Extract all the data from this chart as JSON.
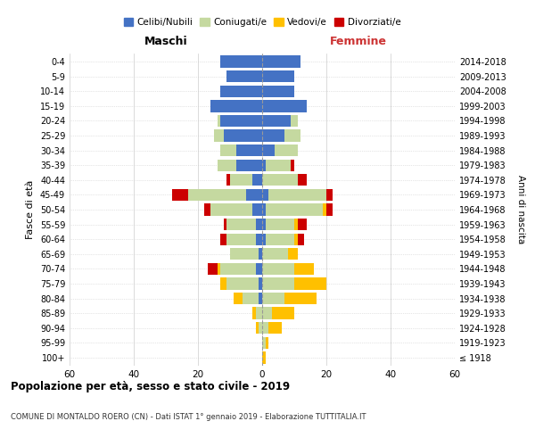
{
  "age_groups": [
    "100+",
    "95-99",
    "90-94",
    "85-89",
    "80-84",
    "75-79",
    "70-74",
    "65-69",
    "60-64",
    "55-59",
    "50-54",
    "45-49",
    "40-44",
    "35-39",
    "30-34",
    "25-29",
    "20-24",
    "15-19",
    "10-14",
    "5-9",
    "0-4"
  ],
  "birth_years": [
    "≤ 1918",
    "1919-1923",
    "1924-1928",
    "1929-1933",
    "1934-1938",
    "1939-1943",
    "1944-1948",
    "1949-1953",
    "1954-1958",
    "1959-1963",
    "1964-1968",
    "1969-1973",
    "1974-1978",
    "1979-1983",
    "1984-1988",
    "1989-1993",
    "1994-1998",
    "1999-2003",
    "2004-2008",
    "2009-2013",
    "2014-2018"
  ],
  "maschi": {
    "celibi": [
      0,
      0,
      0,
      0,
      1,
      1,
      2,
      1,
      2,
      2,
      3,
      5,
      3,
      8,
      8,
      12,
      13,
      16,
      13,
      11,
      13
    ],
    "coniugati": [
      0,
      0,
      1,
      2,
      5,
      10,
      11,
      9,
      9,
      9,
      13,
      18,
      7,
      6,
      5,
      3,
      1,
      0,
      0,
      0,
      0
    ],
    "vedovi": [
      0,
      0,
      1,
      1,
      3,
      2,
      1,
      0,
      0,
      0,
      0,
      0,
      0,
      0,
      0,
      0,
      0,
      0,
      0,
      0,
      0
    ],
    "divorziati": [
      0,
      0,
      0,
      0,
      0,
      0,
      3,
      0,
      2,
      1,
      2,
      5,
      1,
      0,
      0,
      0,
      0,
      0,
      0,
      0,
      0
    ]
  },
  "femmine": {
    "nubili": [
      0,
      0,
      0,
      0,
      0,
      0,
      0,
      0,
      1,
      1,
      1,
      2,
      0,
      1,
      4,
      7,
      9,
      14,
      10,
      10,
      12
    ],
    "coniugate": [
      0,
      1,
      2,
      3,
      7,
      10,
      10,
      8,
      9,
      9,
      18,
      18,
      11,
      8,
      7,
      5,
      2,
      0,
      0,
      0,
      0
    ],
    "vedove": [
      1,
      1,
      4,
      7,
      10,
      10,
      6,
      3,
      1,
      1,
      1,
      0,
      0,
      0,
      0,
      0,
      0,
      0,
      0,
      0,
      0
    ],
    "divorziate": [
      0,
      0,
      0,
      0,
      0,
      0,
      0,
      0,
      2,
      3,
      2,
      2,
      3,
      1,
      0,
      0,
      0,
      0,
      0,
      0,
      0
    ]
  },
  "colors": {
    "celibi": "#4472C4",
    "coniugati": "#c5d9a0",
    "vedovi": "#ffc000",
    "divorziati": "#cc0000"
  },
  "title": "Popolazione per età, sesso e stato civile - 2019",
  "subtitle": "COMUNE DI MONTALDO ROERO (CN) - Dati ISTAT 1° gennaio 2019 - Elaborazione TUTTITALIA.IT",
  "xlabel_maschi": "Maschi",
  "xlabel_femmine": "Femmine",
  "ylabel": "Fasce di età",
  "ylabel_right": "Anni di nascita",
  "xlim": 60,
  "legend_labels": [
    "Celibi/Nubili",
    "Coniugati/e",
    "Vedovi/e",
    "Divorziati/e"
  ],
  "background_color": "#ffffff",
  "grid_color": "#cccccc"
}
